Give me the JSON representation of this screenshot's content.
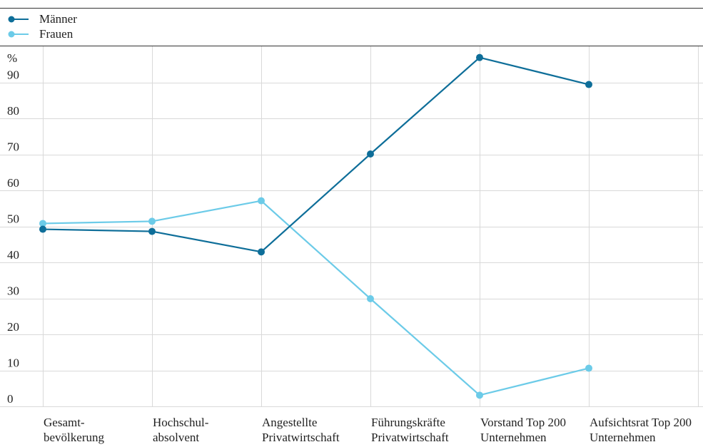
{
  "chart_data": {
    "type": "line",
    "categories": [
      [
        "Gesamt-",
        "bevölkerung"
      ],
      [
        "Hochschul-",
        "absolvent"
      ],
      [
        "Angestellte",
        "Privatwirtschaft"
      ],
      [
        "Führungskräfte",
        "Privatwirtschaft"
      ],
      [
        "Vorstand Top 200",
        "Unternehmen"
      ],
      [
        "Aufsichtsrat Top 200",
        "Unternehmen"
      ]
    ],
    "series": [
      {
        "name": "Männer",
        "color": "#0e6e99",
        "values": [
          49.2,
          48.6,
          42.9,
          70.1,
          96.9,
          89.4
        ]
      },
      {
        "name": "Frauen",
        "color": "#6ccbe8",
        "values": [
          50.8,
          51.4,
          57.1,
          29.9,
          3.1,
          10.6
        ]
      }
    ],
    "yunit": "%",
    "yticks": [
      90,
      80,
      70,
      60,
      50,
      40,
      30,
      20,
      10,
      0
    ],
    "ylim": [
      0,
      100
    ],
    "grid": true,
    "legend": "top-left"
  }
}
